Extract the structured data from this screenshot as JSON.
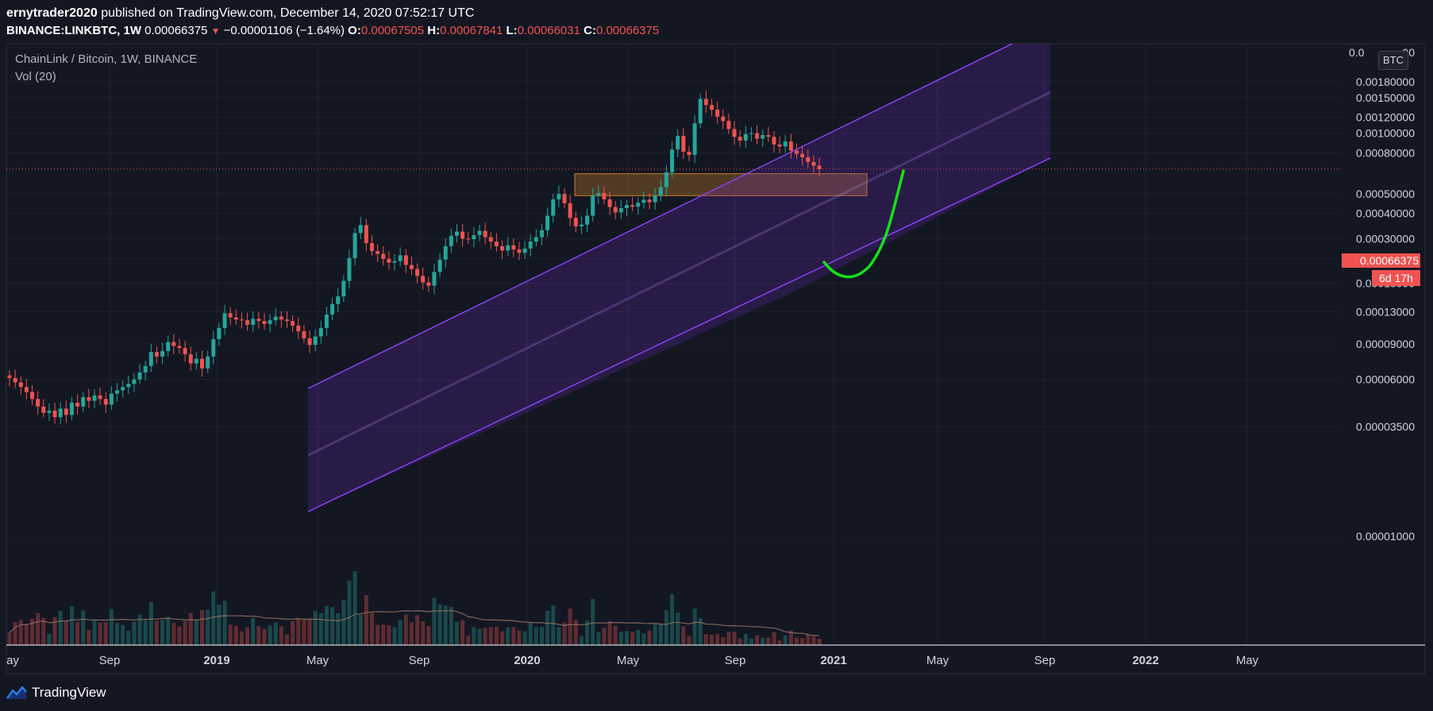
{
  "header": {
    "publisher": "ernytrader2020",
    "published_text": " published on TradingView.com, December 14, 2020 07:52:17 UTC"
  },
  "ticker": {
    "symbol": "BINANCE:LINKBTC, 1W",
    "last": "0.00066375",
    "change_arrow": "▼",
    "change": "−0.00001106 (−1.64%)",
    "open_label": "O:",
    "open": "0.00067505",
    "high_label": "H:",
    "high": "0.00067841",
    "low_label": "L:",
    "low": "0.00066031",
    "close_label": "C:",
    "close": "0.00066375"
  },
  "legend": {
    "title": "ChainLink / Bitcoin, 1W, BINANCE",
    "volume": "Vol (20)"
  },
  "currency_badge": "BTC",
  "price_tag": "0.00066375",
  "timer_tag": "6d 17h",
  "footer": {
    "brand": "TradingView"
  },
  "icons": [
    "tradingview-logo-icon"
  ],
  "colors": {
    "background": "#131722",
    "up": "#26a69a",
    "down": "#ef5350",
    "channel": "#7b2fcf",
    "zone": "#c77d29",
    "projection": "#18e018",
    "volume_ma": "#8d6e63"
  },
  "chart_data": {
    "type": "candlestick",
    "title": "ChainLink / Bitcoin, 1W, BINANCE",
    "y_scale": "log",
    "y_ticks": [
      "0.00180000",
      "0.00150000",
      "0.00120000",
      "0.00100000",
      "0.00080000",
      "0.00050000",
      "0.00040000",
      "0.00030000",
      "0.00024000",
      "0.00018000",
      "0.00013000",
      "0.00009000",
      "0.00006000",
      "0.00003500",
      "0.00001000"
    ],
    "y_tick_values": [
      0.0018,
      0.0015,
      0.0012,
      0.001,
      0.0008,
      0.0005,
      0.0004,
      0.0003,
      0.00024,
      0.00018,
      0.00013,
      9e-05,
      6e-05,
      3.5e-05,
      1e-05
    ],
    "y_top_partial": "0.0",
    "y_top_partial_tail": "00",
    "x_ticks": [
      {
        "label": "ay",
        "bold": false
      },
      {
        "label": "Sep",
        "bold": false
      },
      {
        "label": "2019",
        "bold": true
      },
      {
        "label": "May",
        "bold": false
      },
      {
        "label": "Sep",
        "bold": false
      },
      {
        "label": "2020",
        "bold": true
      },
      {
        "label": "May",
        "bold": false
      },
      {
        "label": "Sep",
        "bold": false
      },
      {
        "label": "2021",
        "bold": true
      },
      {
        "label": "May",
        "bold": false
      },
      {
        "label": "Sep",
        "bold": false
      },
      {
        "label": "2022",
        "bold": true
      },
      {
        "label": "May",
        "bold": false
      }
    ],
    "last_price": 0.00066375,
    "close_series": [
      6.1e-05,
      5.8e-05,
      5.5e-05,
      5.2e-05,
      4.8e-05,
      4.4e-05,
      4.1e-05,
      4.2e-05,
      3.9e-05,
      4.3e-05,
      4e-05,
      4.6e-05,
      4.4e-05,
      4.9e-05,
      4.7e-05,
      5e-05,
      4.8e-05,
      4.5e-05,
      5.1e-05,
      5.3e-05,
      5.5e-05,
      5.7e-05,
      6e-05,
      6.5e-05,
      7e-05,
      8.2e-05,
      7.8e-05,
      8.3e-05,
      9.2e-05,
      8.8e-05,
      8.6e-05,
      8e-05,
      7.2e-05,
      7.6e-05,
      6.8e-05,
      7.8e-05,
      9.5e-05,
      0.000108,
      0.000128,
      0.000122,
      0.000119,
      0.000118,
      0.000112,
      0.00012,
      0.000117,
      0.000113,
      0.000118,
      0.000123,
      0.000119,
      0.000117,
      0.000111,
      0.000104,
      9.6e-05,
      8.9e-05,
      9.8e-05,
      0.000108,
      0.000126,
      0.000142,
      0.000155,
      0.000185,
      0.00024,
      0.00032,
      0.00035,
      0.000285,
      0.00026,
      0.000252,
      0.000238,
      0.000228,
      0.000232,
      0.000248,
      0.000222,
      0.000212,
      0.000196,
      0.000182,
      0.000175,
      0.000205,
      0.000236,
      0.000275,
      0.00031,
      0.000325,
      0.0003,
      0.000298,
      0.000312,
      0.000328,
      0.000305,
      0.00029,
      0.000275,
      0.000262,
      0.000278,
      0.000265,
      0.000255,
      0.000268,
      0.00029,
      0.000305,
      0.00033,
      0.00039,
      0.00047,
      0.0005,
      0.00045,
      0.00038,
      0.000345,
      0.000352,
      0.00039,
      0.00049,
      0.000505,
      0.00047,
      0.00043,
      0.000405,
      0.000425,
      0.00044,
      0.000432,
      0.000452,
      0.000468,
      0.000455,
      0.00049,
      0.00054,
      0.00064,
      0.00083,
      0.00097,
      0.00081,
      0.00078,
      0.00112,
      0.00148,
      0.00138,
      0.00131,
      0.00121,
      0.00115,
      0.00105,
      0.00096,
      0.00092,
      0.00099,
      0.001,
      0.00094,
      0.00098,
      0.00096,
      0.00088,
      0.00086,
      0.00091,
      0.00082,
      0.00079,
      0.00076,
      0.00072,
      0.00069,
      0.000664
    ],
    "annotations": [
      {
        "type": "ascending-channel",
        "color": "#7b2fcf"
      },
      {
        "type": "support-zone",
        "price_low": 0.00049,
        "price_high": 0.00063,
        "color": "#c77d29"
      },
      {
        "type": "projection-curve",
        "color": "#18e018"
      }
    ]
  }
}
